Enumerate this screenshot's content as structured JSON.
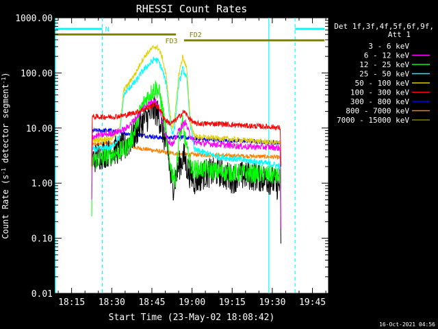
{
  "chart_data": {
    "type": "line",
    "title": "RHESSI Count Rates",
    "xlabel": "Start Time (23-May-02 18:08:42)",
    "ylabel_main": "Count Rate (s",
    "ylabel_sup1": "-1",
    "ylabel_mid": " detector segment",
    "ylabel_sup2": "-1",
    "ylabel_end": ")",
    "timestamp": "16-Oct-2021 04:56",
    "x_tick_labels": [
      "18:15",
      "18:30",
      "18:45",
      "19:00",
      "19:15",
      "19:30",
      "19:45"
    ],
    "x_tick_minutes": [
      1095,
      1110,
      1125,
      1140,
      1155,
      1170,
      1185
    ],
    "xlim_minutes": [
      1088.7,
      1191.0
    ],
    "ylim": [
      0.01,
      1000
    ],
    "y_scale": "log",
    "y_tick_labels": [
      "1000.00",
      "100.00",
      "10.00",
      "1.00",
      "0.10",
      "0.01"
    ],
    "y_tick_values": [
      1000,
      100,
      10,
      1,
      0.1,
      0.01
    ],
    "legend": {
      "header": [
        "Det 1f,3f,4f,5f,6f,9f,",
        "Att 1"
      ],
      "entries": [
        {
          "label": "3 - 6 keV",
          "color": "#000000"
        },
        {
          "label": "6 - 12 keV",
          "color": "#ff00ff"
        },
        {
          "label": "12 - 25 keV",
          "color": "#00ff00"
        },
        {
          "label": "25 - 50 keV",
          "color": "#00ffff"
        },
        {
          "label": "50 - 100 keV",
          "color": "#e0d000"
        },
        {
          "label": "100 - 300 keV",
          "color": "#ff0000"
        },
        {
          "label": "300 - 800 keV",
          "color": "#0000ff"
        },
        {
          "label": "800 - 7000 keV",
          "color": "#ff8000"
        },
        {
          "label": "7000 - 15000 keV",
          "color": "#808000"
        }
      ]
    },
    "annotations": {
      "N": {
        "label": "N",
        "color": "#00ffff",
        "y": 630,
        "segments": [
          [
            1088.7,
            1106.5
          ],
          [
            1178.5,
            1189.5
          ]
        ]
      },
      "FD2": {
        "label": "FD2",
        "color": "#808000",
        "y": 500,
        "x_range": [
          1088.7,
          1134
        ],
        "label_x": 1139
      },
      "FD3": {
        "label": "FD3",
        "color": "#808000",
        "y": 390,
        "x_range": [
          1137,
          1189.5
        ],
        "label_x": 1130
      }
    },
    "vertical_lines": [
      {
        "x": 1088.9,
        "color": "#00ffff",
        "style": "solid"
      },
      {
        "x": 1106.5,
        "color": "#00ffff",
        "style": "dashed"
      },
      {
        "x": 1168.7,
        "color": "#00ffff",
        "style": "solid"
      },
      {
        "x": 1178.5,
        "color": "#00ffff",
        "style": "dashed"
      }
    ],
    "series": [
      {
        "name": "3 - 6 keV",
        "color": "#000000",
        "noise": 0.55,
        "points": [
          [
            1102.5,
            0.5
          ],
          [
            1102.7,
            2.6
          ],
          [
            1105,
            3.2
          ],
          [
            1110,
            3.8
          ],
          [
            1115,
            4.5
          ],
          [
            1118,
            7
          ],
          [
            1121,
            12
          ],
          [
            1124,
            17
          ],
          [
            1126,
            22
          ],
          [
            1127.5,
            17
          ],
          [
            1129,
            9
          ],
          [
            1131,
            3.5
          ],
          [
            1132,
            1.3
          ],
          [
            1133,
            0.9
          ],
          [
            1135,
            2
          ],
          [
            1137,
            3
          ],
          [
            1138.5,
            1.7
          ],
          [
            1141,
            1.1
          ],
          [
            1145,
            1.5
          ],
          [
            1150,
            1.6
          ],
          [
            1155,
            1.2
          ],
          [
            1160,
            1.4
          ],
          [
            1165,
            1.3
          ],
          [
            1170,
            1.1
          ],
          [
            1172,
            0.9
          ],
          [
            1173,
            1.0
          ],
          [
            1173.2,
            0.08
          ]
        ]
      },
      {
        "name": "6 - 12 keV",
        "color": "#ff00ff",
        "noise": 0.12,
        "points": [
          [
            1102.5,
            0.5
          ],
          [
            1102.7,
            7
          ],
          [
            1110,
            8
          ],
          [
            1115,
            9.5
          ],
          [
            1119,
            15
          ],
          [
            1122,
            24
          ],
          [
            1124.5,
            29
          ],
          [
            1126,
            33
          ],
          [
            1127.5,
            25
          ],
          [
            1129,
            12
          ],
          [
            1131,
            6
          ],
          [
            1133,
            5
          ],
          [
            1135,
            9
          ],
          [
            1137.5,
            13
          ],
          [
            1139,
            8
          ],
          [
            1141,
            5.5
          ],
          [
            1150,
            5
          ],
          [
            1160,
            4.6
          ],
          [
            1170,
            4.5
          ],
          [
            1173,
            4.3
          ],
          [
            1173.2,
            0.15
          ]
        ]
      },
      {
        "name": "12 - 25 keV",
        "color": "#00ff00",
        "noise": 0.35,
        "points": [
          [
            1102.5,
            0.25
          ],
          [
            1102.7,
            2.5
          ],
          [
            1110,
            3.3
          ],
          [
            1115,
            4.2
          ],
          [
            1118,
            7
          ],
          [
            1120,
            17
          ],
          [
            1122.5,
            32
          ],
          [
            1125,
            45
          ],
          [
            1126.5,
            55
          ],
          [
            1128,
            40
          ],
          [
            1129.5,
            15
          ],
          [
            1131,
            4
          ],
          [
            1132.5,
            1.5
          ],
          [
            1134,
            1.2
          ],
          [
            1135,
            6
          ],
          [
            1136.5,
            12
          ],
          [
            1138.5,
            3
          ],
          [
            1140,
            1.8
          ],
          [
            1145,
            1.8
          ],
          [
            1150,
            1.6
          ],
          [
            1160,
            1.5
          ],
          [
            1170,
            1.4
          ],
          [
            1173,
            1.3
          ],
          [
            1173.2,
            0.2
          ]
        ]
      },
      {
        "name": "25 - 50 keV",
        "color": "#00ffff",
        "noise": 0.12,
        "points": [
          [
            1102.5,
            0.6
          ],
          [
            1102.7,
            4
          ],
          [
            1110,
            4.5
          ],
          [
            1113,
            7
          ],
          [
            1114.5,
            40
          ],
          [
            1116,
            50
          ],
          [
            1117.5,
            60
          ],
          [
            1119,
            70
          ],
          [
            1121,
            100
          ],
          [
            1123,
            130
          ],
          [
            1124.5,
            150
          ],
          [
            1126,
            180
          ],
          [
            1127.5,
            160
          ],
          [
            1129,
            110
          ],
          [
            1130.5,
            60
          ],
          [
            1131.5,
            18
          ],
          [
            1132.5,
            8
          ],
          [
            1133.5,
            10
          ],
          [
            1135,
            60
          ],
          [
            1136.5,
            120
          ],
          [
            1138,
            80
          ],
          [
            1139.5,
            10
          ],
          [
            1141,
            4
          ],
          [
            1150,
            3
          ],
          [
            1160,
            2.6
          ],
          [
            1170,
            2.2
          ],
          [
            1173,
            2
          ],
          [
            1173.2,
            0.5
          ]
        ]
      },
      {
        "name": "50 - 100 keV",
        "color": "#e0d000",
        "noise": 0.1,
        "points": [
          [
            1102.5,
            1
          ],
          [
            1102.7,
            6
          ],
          [
            1110,
            6.5
          ],
          [
            1113,
            10
          ],
          [
            1114.5,
            50
          ],
          [
            1116,
            60
          ],
          [
            1117.5,
            80
          ],
          [
            1119,
            100
          ],
          [
            1121,
            160
          ],
          [
            1123,
            220
          ],
          [
            1124.5,
            260
          ],
          [
            1126,
            300
          ],
          [
            1127.5,
            280
          ],
          [
            1129,
            180
          ],
          [
            1130.5,
            80
          ],
          [
            1131.5,
            25
          ],
          [
            1132.5,
            10
          ],
          [
            1133.5,
            14
          ],
          [
            1135,
            90
          ],
          [
            1136.5,
            200
          ],
          [
            1138,
            120
          ],
          [
            1139.5,
            12
          ],
          [
            1141,
            7
          ],
          [
            1150,
            6.5
          ],
          [
            1160,
            6
          ],
          [
            1170,
            5.5
          ],
          [
            1173,
            5.3
          ],
          [
            1173.2,
            1
          ]
        ]
      },
      {
        "name": "100 - 300 keV",
        "color": "#ff0000",
        "noise": 0.1,
        "points": [
          [
            1102.5,
            2
          ],
          [
            1102.7,
            16
          ],
          [
            1110,
            16
          ],
          [
            1115,
            17
          ],
          [
            1120,
            20
          ],
          [
            1124,
            24
          ],
          [
            1126,
            27
          ],
          [
            1128,
            22
          ],
          [
            1130,
            14
          ],
          [
            1132,
            12
          ],
          [
            1134,
            14
          ],
          [
            1137,
            20
          ],
          [
            1139,
            15
          ],
          [
            1141,
            12
          ],
          [
            1150,
            12
          ],
          [
            1160,
            11
          ],
          [
            1170,
            10.5
          ],
          [
            1173,
            10
          ],
          [
            1173.2,
            2
          ]
        ]
      },
      {
        "name": "300 - 800 keV",
        "color": "#0000ff",
        "noise": 0.08,
        "points": [
          [
            1102.5,
            2
          ],
          [
            1102.7,
            9
          ],
          [
            1110,
            9
          ],
          [
            1115,
            8
          ],
          [
            1120,
            7.5
          ],
          [
            1125,
            7
          ],
          [
            1130,
            6.5
          ],
          [
            1135,
            7
          ],
          [
            1140,
            6.5
          ],
          [
            1150,
            6
          ],
          [
            1160,
            5.8
          ],
          [
            1170,
            5.5
          ],
          [
            1173,
            5.3
          ],
          [
            1173.2,
            1
          ]
        ]
      },
      {
        "name": "800 - 7000 keV",
        "color": "#ff8000",
        "noise": 0.08,
        "points": [
          [
            1102.5,
            1.5
          ],
          [
            1102.7,
            5
          ],
          [
            1108,
            5.3
          ],
          [
            1112,
            5.5
          ],
          [
            1116,
            4.8
          ],
          [
            1120,
            4.3
          ],
          [
            1125,
            4
          ],
          [
            1130,
            3.6
          ],
          [
            1135,
            3.4
          ],
          [
            1140,
            3.3
          ],
          [
            1150,
            3.2
          ],
          [
            1160,
            3.1
          ],
          [
            1170,
            3
          ],
          [
            1173,
            2.9
          ],
          [
            1173.2,
            0.8
          ]
        ]
      }
    ]
  }
}
